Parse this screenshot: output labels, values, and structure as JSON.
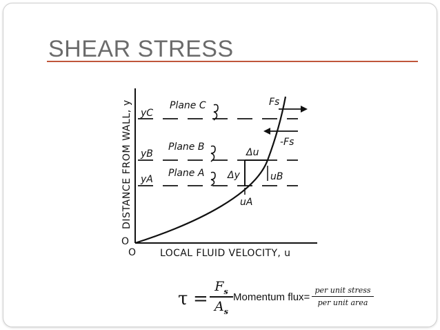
{
  "slide": {
    "title": "SHEAR STRESS"
  },
  "diagram": {
    "y_axis_label": "DISTANCE FROM WALL, y",
    "x_axis_label": "LOCAL FLUID VELOCITY, u",
    "origin_y": "O",
    "origin_x": "O",
    "levels": [
      {
        "level_label": "yC",
        "plane_label": "Plane C"
      },
      {
        "level_label": "yB",
        "plane_label": "Plane B"
      },
      {
        "level_label": "yA",
        "plane_label": "Plane A"
      }
    ],
    "force_top": "Fs",
    "force_bottom": "-Fs",
    "delta_u": "Δu",
    "delta_y": "Δy",
    "velocity_b": "uB",
    "velocity_a": "uA"
  },
  "formula": {
    "tau": "τ",
    "equals": "=",
    "numerator": "F",
    "numerator_sub": "s",
    "denominator": "A",
    "denominator_sub": "s",
    "momentum_flux": "Momentum flux=",
    "ratio_numerator": "per unit stress",
    "ratio_denominator": "per unit area"
  }
}
